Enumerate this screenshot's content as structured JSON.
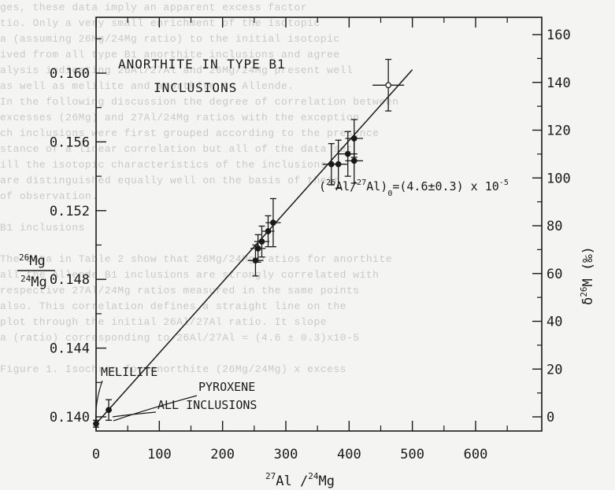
{
  "background_text": [
    "ges, these data imply an apparent excess factor",
    "tio. Only a very small enrichment of the isotopic",
    "a (assuming 26Mg/24Mg ratio) to the initial isotopic",
    "ived from all type B1 anorthite inclusions and agree",
    "alysis indicating 26Al/27Al and 26Mg/24Mg present well",
    "as well as melilite and anorthite in Allende.",
    "In the following discussion the degree of correlation between",
    "excesses (26Mg) and 27Al/24Mg ratios with the exception",
    "ch inclusions were first grouped according to the presence",
    "stance of a linear correlation but all of the data set",
    "ill the isotopic characteristics of the inclusions",
    "are distinguished equally well on the basis of their",
    "of observation.",
    "",
    "B1 inclusions",
    "",
    "The data in Table 2 show that 26Mg/24Mg ratios for anorthite",
    "all the Allende B1 inclusions are strongly correlated with",
    "respective 27Al/24Mg ratios measured in the same points",
    "also. This correlation defines a straight line on the",
    "plot through the initial 26Al/27Al ratio. It slope",
    "a (ratio) corresponding to 26Al/27Al = (4.6 ± 0.3)x10-5",
    "",
    "Figure 1. Isochron for anorthite (26Mg/24Mg) x excess"
  ],
  "chart_data": {
    "type": "scatter",
    "title_lines": [
      "ANORTHITE IN TYPE B1",
      "INCLUSIONS"
    ],
    "xlabel": "27Al/24Mg",
    "ylabel_left": "26Mg/24Mg",
    "ylabel_right": "δ26M (‰)",
    "xlim": [
      0,
      650
    ],
    "ylim": [
      0.1394,
      0.1629
    ],
    "right_ylim": [
      0,
      165
    ],
    "x_ticks": [
      0,
      100,
      200,
      300,
      400,
      500,
      600
    ],
    "y_ticks": [
      0.14,
      0.144,
      0.148,
      0.152,
      0.156,
      0.16
    ],
    "y_tick_labels": [
      "0.140",
      "0.144",
      "0.148",
      "0.152",
      "0.156",
      "0.160"
    ],
    "right_ticks": [
      0,
      20,
      40,
      60,
      80,
      100,
      120,
      140,
      160
    ],
    "isochron": {
      "label": "(26Al/27Al)0=(4.6±0.3) x 10-5",
      "x": [
        0,
        500
      ],
      "y": [
        0.1396,
        0.1602
      ]
    },
    "points": [
      {
        "x": 0,
        "y": 0.1396,
        "xerr": 5,
        "yerr": 0.0002,
        "filled": true
      },
      {
        "x": 20,
        "y": 0.1404,
        "xerr": 5,
        "yerr": 0.0006,
        "filled": true
      },
      {
        "x": 252,
        "y": 0.1491,
        "xerr": 12,
        "yerr": 0.0009,
        "filled": true
      },
      {
        "x": 256,
        "y": 0.1498,
        "xerr": 12,
        "yerr": 0.0008,
        "filled": true
      },
      {
        "x": 262,
        "y": 0.1502,
        "xerr": 12,
        "yerr": 0.0009,
        "filled": true
      },
      {
        "x": 272,
        "y": 0.1508,
        "xerr": 10,
        "yerr": 0.0009,
        "filled": true
      },
      {
        "x": 280,
        "y": 0.1513,
        "xerr": 12,
        "yerr": 0.0014,
        "filled": true
      },
      {
        "x": 372,
        "y": 0.1547,
        "xerr": 14,
        "yerr": 0.0012,
        "filled": true
      },
      {
        "x": 383,
        "y": 0.1547,
        "xerr": 14,
        "yerr": 0.0014,
        "filled": true
      },
      {
        "x": 398,
        "y": 0.1553,
        "xerr": 15,
        "yerr": 0.0013,
        "filled": true
      },
      {
        "x": 408,
        "y": 0.1562,
        "xerr": 14,
        "yerr": 0.0011,
        "filled": true
      },
      {
        "x": 408,
        "y": 0.1549,
        "xerr": 14,
        "yerr": 0.0013,
        "filled": true
      },
      {
        "x": 462,
        "y": 0.1593,
        "xerr": 25,
        "yerr": 0.0015,
        "filled": false
      }
    ],
    "annotations": [
      {
        "text": "MELILITE",
        "points_to": {
          "x": 0,
          "y": 0.1396
        }
      },
      {
        "text": "PYROXENE",
        "points_to": {
          "x": 10,
          "y": 0.1399
        }
      },
      {
        "text": "ALL INCLUSIONS",
        "points_to": {
          "x": 20,
          "y": 0.1404
        }
      }
    ],
    "grid": false,
    "legend": "none",
    "colors": {
      "ink": "#1a1a1a",
      "paper": "#f4f4f2"
    }
  }
}
